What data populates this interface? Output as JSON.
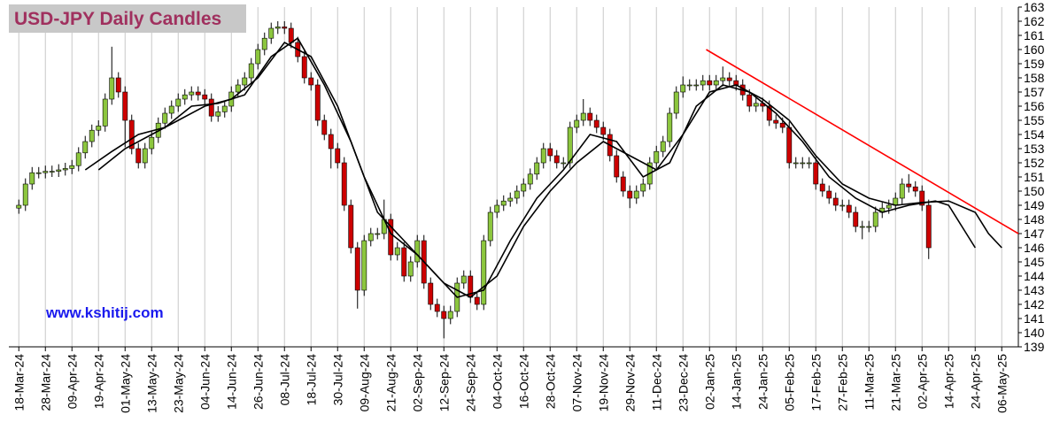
{
  "chart_data": {
    "type": "candlestick",
    "title": "USD-JPY Daily Candles",
    "annotation": "www.kshitij.com",
    "up_color": "#8cc63e",
    "down_color": "#cc0000",
    "ylim": [
      139,
      163
    ],
    "yticks": [
      139,
      140,
      141,
      142,
      143,
      144,
      145,
      146,
      147,
      148,
      149,
      150,
      151,
      152,
      153,
      154,
      155,
      156,
      157,
      158,
      159,
      160,
      161,
      162,
      163
    ],
    "xlim": [
      -3,
      301
    ],
    "grid": true,
    "xticks": [
      {
        "value": 0,
        "label": "18-Mar-24"
      },
      {
        "value": 8,
        "label": "28-Mar-24"
      },
      {
        "value": 16,
        "label": "09-Apr-24"
      },
      {
        "value": 24,
        "label": "19-Apr-24"
      },
      {
        "value": 32,
        "label": "01-May-24"
      },
      {
        "value": 40,
        "label": "13-May-24"
      },
      {
        "value": 48,
        "label": "23-May-24"
      },
      {
        "value": 56,
        "label": "04-Jun-24"
      },
      {
        "value": 64,
        "label": "14-Jun-24"
      },
      {
        "value": 72,
        "label": "26-Jun-24"
      },
      {
        "value": 80,
        "label": "08-Jul-24"
      },
      {
        "value": 88,
        "label": "18-Jul-24"
      },
      {
        "value": 96,
        "label": "30-Jul-24"
      },
      {
        "value": 104,
        "label": "09-Aug-24"
      },
      {
        "value": 112,
        "label": "21-Aug-24"
      },
      {
        "value": 120,
        "label": "02-Sep-24"
      },
      {
        "value": 128,
        "label": "12-Sep-24"
      },
      {
        "value": 136,
        "label": "24-Sep-24"
      },
      {
        "value": 144,
        "label": "04-Oct-24"
      },
      {
        "value": 152,
        "label": "16-Oct-24"
      },
      {
        "value": 160,
        "label": "28-Oct-24"
      },
      {
        "value": 168,
        "label": "07-Nov-24"
      },
      {
        "value": 176,
        "label": "19-Nov-24"
      },
      {
        "value": 184,
        "label": "29-Nov-24"
      },
      {
        "value": 192,
        "label": "11-Dec-24"
      },
      {
        "value": 200,
        "label": "23-Dec-24"
      },
      {
        "value": 208,
        "label": "02-Jan-25"
      },
      {
        "value": 216,
        "label": "14-Jan-25"
      },
      {
        "value": 224,
        "label": "24-Jan-25"
      },
      {
        "value": 232,
        "label": "05-Feb-25"
      },
      {
        "value": 240,
        "label": "17-Feb-25"
      },
      {
        "value": 248,
        "label": "27-Feb-25"
      },
      {
        "value": 256,
        "label": "11-Mar-25"
      },
      {
        "value": 264,
        "label": "21-Mar-25"
      },
      {
        "value": 272,
        "label": "02-Apr-25"
      },
      {
        "value": 280,
        "label": "14-Apr-25"
      },
      {
        "value": 288,
        "label": "24-Apr-25"
      },
      {
        "value": 296,
        "label": "06-May-25"
      }
    ],
    "x": [
      0,
      2,
      4,
      6,
      8,
      10,
      12,
      14,
      16,
      18,
      20,
      22,
      24,
      26,
      28,
      30,
      32,
      34,
      36,
      38,
      40,
      42,
      44,
      46,
      48,
      50,
      52,
      54,
      56,
      58,
      60,
      62,
      64,
      66,
      68,
      70,
      72,
      74,
      76,
      78,
      80,
      82,
      84,
      86,
      88,
      90,
      92,
      94,
      96,
      98,
      100,
      102,
      104,
      106,
      108,
      110,
      112,
      114,
      116,
      118,
      120,
      122,
      124,
      126,
      128,
      130,
      132,
      134,
      136,
      138,
      140,
      142,
      144,
      146,
      148,
      150,
      152,
      154,
      156,
      158,
      160,
      162,
      164,
      166,
      168,
      170,
      172,
      174,
      176,
      178,
      180,
      182,
      184,
      186,
      188,
      190,
      192,
      194,
      196,
      198,
      200,
      202,
      204,
      206,
      208,
      210,
      212,
      214,
      216,
      218,
      220,
      222,
      224,
      226,
      228,
      230,
      232,
      234,
      236,
      238,
      240,
      242,
      244,
      246,
      248,
      250,
      252,
      254,
      256,
      258,
      260,
      262,
      264,
      266,
      268,
      270,
      272,
      274
    ],
    "open": [
      148.8,
      149.0,
      150.5,
      151.3,
      151.3,
      151.4,
      151.4,
      151.5,
      151.6,
      151.8,
      152.7,
      153.5,
      154.3,
      154.6,
      156.5,
      158.0,
      157.0,
      155.0,
      153.0,
      152.0,
      153.0,
      153.8,
      154.8,
      155.5,
      156.0,
      156.5,
      156.8,
      157.0,
      156.8,
      156.5,
      155.3,
      155.6,
      156.0,
      157.0,
      157.5,
      158.0,
      159.0,
      160.0,
      160.8,
      161.5,
      161.6,
      161.5,
      160.5,
      159.5,
      158.0,
      157.5,
      155.0,
      154.0,
      153.0,
      152.0,
      149.0,
      146.0,
      143.0,
      146.5,
      147.0,
      147.0,
      148.0,
      145.5,
      146.0,
      144.0,
      145.0,
      146.5,
      143.5,
      142.0,
      141.5,
      141.0,
      141.5,
      143.5,
      144.0,
      142.5,
      142.0,
      146.5,
      148.5,
      149.0,
      149.3,
      149.5,
      150.0,
      150.5,
      151.2,
      152.0,
      153.0,
      152.5,
      152.0,
      152.0,
      154.5,
      155.0,
      155.5,
      155.0,
      154.5,
      154.0,
      152.5,
      151.0,
      150.0,
      149.5,
      150.0,
      150.5,
      152.0,
      152.8,
      153.5,
      155.5,
      157.0,
      157.5,
      157.5,
      157.5,
      157.8,
      157.5,
      157.8,
      158.0,
      157.8,
      157.5,
      156.8,
      156.0,
      156.2,
      156.0,
      155.0,
      154.8,
      154.5,
      152.0,
      152.0,
      152.0,
      152.0,
      150.5,
      150.0,
      149.5,
      149.0,
      149.0,
      148.5,
      147.5,
      147.5,
      147.5,
      148.5,
      148.8,
      149.0,
      149.5,
      150.5,
      150.3,
      150.0,
      149.0
    ],
    "high": [
      149.4,
      150.9,
      151.7,
      151.7,
      151.8,
      151.8,
      151.9,
      152.0,
      152.2,
      153.1,
      153.9,
      154.7,
      155.0,
      156.9,
      160.2,
      158.4,
      157.4,
      155.4,
      153.4,
      153.4,
      154.2,
      155.2,
      155.9,
      156.4,
      156.9,
      157.2,
      157.4,
      157.4,
      157.2,
      156.9,
      156.0,
      156.4,
      157.4,
      157.9,
      158.4,
      159.4,
      160.4,
      161.2,
      161.9,
      162.0,
      162.0,
      161.9,
      160.9,
      159.9,
      158.4,
      157.9,
      155.4,
      154.4,
      153.4,
      152.4,
      149.4,
      146.4,
      146.9,
      147.4,
      147.4,
      149.4,
      148.4,
      146.4,
      146.4,
      145.4,
      146.9,
      146.9,
      143.9,
      142.4,
      141.9,
      141.9,
      143.9,
      144.4,
      144.4,
      142.9,
      146.9,
      148.9,
      149.4,
      149.7,
      149.9,
      150.4,
      150.9,
      151.6,
      152.4,
      153.4,
      153.4,
      152.9,
      152.4,
      154.9,
      155.4,
      156.5,
      155.9,
      155.4,
      154.9,
      154.4,
      152.9,
      151.4,
      150.4,
      150.4,
      150.9,
      152.4,
      153.2,
      153.9,
      155.9,
      157.4,
      158.1,
      157.9,
      157.9,
      158.2,
      158.2,
      158.2,
      158.8,
      158.4,
      158.2,
      157.9,
      157.2,
      156.6,
      156.6,
      156.4,
      155.4,
      155.2,
      154.9,
      152.4,
      152.4,
      152.4,
      152.4,
      150.9,
      150.4,
      149.9,
      149.4,
      149.4,
      148.9,
      147.9,
      147.9,
      148.9,
      149.2,
      149.4,
      149.9,
      150.9,
      151.2,
      150.7,
      150.4,
      149.4
    ],
    "low": [
      148.4,
      148.6,
      150.1,
      150.9,
      150.9,
      151.0,
      151.0,
      151.1,
      151.2,
      151.4,
      152.3,
      153.1,
      153.9,
      154.2,
      156.1,
      156.6,
      153.1,
      152.6,
      151.6,
      151.6,
      152.6,
      153.4,
      154.4,
      155.1,
      155.6,
      156.1,
      156.4,
      156.4,
      156.1,
      154.9,
      154.9,
      155.2,
      155.6,
      156.6,
      157.1,
      157.6,
      158.6,
      159.6,
      160.4,
      161.1,
      161.1,
      160.1,
      159.1,
      157.6,
      157.1,
      154.6,
      153.6,
      151.6,
      151.6,
      148.6,
      145.6,
      141.7,
      142.6,
      146.1,
      146.6,
      146.6,
      145.1,
      145.1,
      143.6,
      143.6,
      144.6,
      143.1,
      141.6,
      141.1,
      139.6,
      140.6,
      141.1,
      143.1,
      142.1,
      141.6,
      141.6,
      146.1,
      148.1,
      148.6,
      148.9,
      149.1,
      149.6,
      150.1,
      150.8,
      151.6,
      152.1,
      151.6,
      151.6,
      151.6,
      154.1,
      154.6,
      154.6,
      154.1,
      153.6,
      152.1,
      150.6,
      149.6,
      148.8,
      149.1,
      149.6,
      150.1,
      151.6,
      152.4,
      153.1,
      155.1,
      156.6,
      157.1,
      157.1,
      157.1,
      157.1,
      157.1,
      157.4,
      157.4,
      157.1,
      156.4,
      155.6,
      155.6,
      155.6,
      154.6,
      154.4,
      154.1,
      151.6,
      151.6,
      151.6,
      151.6,
      150.1,
      149.6,
      149.1,
      148.6,
      148.6,
      148.1,
      147.1,
      146.6,
      147.1,
      147.1,
      148.1,
      148.4,
      148.6,
      149.1,
      149.9,
      149.6,
      148.6,
      145.2
    ],
    "close": [
      149.0,
      150.5,
      151.3,
      151.3,
      151.4,
      151.4,
      151.5,
      151.6,
      151.8,
      152.7,
      153.5,
      154.3,
      154.6,
      156.5,
      158.0,
      157.0,
      155.0,
      153.0,
      152.0,
      153.0,
      153.8,
      154.8,
      155.5,
      156.0,
      156.5,
      156.8,
      157.0,
      156.8,
      156.5,
      155.3,
      155.6,
      156.0,
      157.0,
      157.5,
      158.0,
      159.0,
      160.0,
      160.8,
      161.5,
      161.6,
      161.5,
      160.5,
      159.5,
      158.0,
      157.5,
      155.0,
      154.0,
      153.0,
      152.0,
      149.0,
      146.0,
      143.0,
      146.5,
      147.0,
      147.0,
      148.0,
      145.5,
      146.0,
      144.0,
      145.0,
      146.5,
      143.5,
      142.0,
      141.5,
      141.0,
      141.5,
      143.5,
      144.0,
      142.5,
      142.0,
      146.5,
      148.5,
      149.0,
      149.3,
      149.5,
      150.0,
      150.5,
      151.2,
      152.0,
      153.0,
      152.5,
      152.0,
      152.0,
      154.5,
      155.0,
      155.5,
      155.0,
      154.5,
      154.0,
      152.5,
      151.0,
      150.0,
      149.5,
      150.0,
      150.5,
      152.0,
      152.8,
      153.5,
      155.5,
      157.0,
      157.5,
      157.5,
      157.5,
      157.8,
      157.5,
      157.8,
      158.0,
      157.8,
      157.5,
      156.8,
      156.0,
      156.2,
      156.0,
      155.0,
      154.8,
      154.5,
      152.0,
      152.0,
      152.0,
      152.0,
      150.5,
      150.0,
      149.5,
      149.0,
      149.0,
      148.5,
      147.5,
      147.5,
      147.5,
      148.5,
      148.8,
      149.0,
      149.5,
      150.5,
      150.3,
      150.0,
      149.0,
      146.0
    ],
    "moving_averages": [
      {
        "color": "#000000",
        "x": [
          20,
          28,
          36,
          44,
          52,
          60,
          68,
          76,
          84,
          92,
          100,
          108,
          116,
          124,
          132,
          140,
          148,
          156,
          164,
          172,
          180,
          188,
          196,
          204,
          212,
          220,
          228,
          236,
          244,
          252,
          260,
          268,
          276,
          280,
          284,
          288
        ],
        "values": [
          151.5,
          152.8,
          154.0,
          154.5,
          156.0,
          156.2,
          156.8,
          159.5,
          160.8,
          157.5,
          153.5,
          148.5,
          146.5,
          144.5,
          142.5,
          143.0,
          146.5,
          149.5,
          151.5,
          154.0,
          153.5,
          151.0,
          152.0,
          156.0,
          157.5,
          157.0,
          155.5,
          153.5,
          151.0,
          149.5,
          148.5,
          149.0,
          149.3,
          149.0,
          147.5,
          146.0
        ]
      },
      {
        "color": "#000000",
        "x": [
          24,
          32,
          40,
          48,
          56,
          64,
          72,
          80,
          88,
          96,
          104,
          112,
          120,
          128,
          136,
          144,
          152,
          160,
          168,
          176,
          184,
          192,
          200,
          208,
          216,
          224,
          232,
          240,
          248,
          256,
          264,
          272,
          280,
          288,
          292,
          296
        ],
        "values": [
          151.5,
          153.0,
          154.0,
          155.0,
          156.0,
          156.5,
          158.0,
          160.5,
          159.5,
          156.0,
          151.0,
          147.0,
          145.5,
          143.5,
          142.5,
          144.0,
          147.5,
          150.0,
          152.0,
          153.5,
          152.5,
          151.5,
          154.0,
          157.0,
          157.5,
          156.5,
          155.0,
          152.5,
          150.5,
          149.5,
          149.0,
          149.2,
          149.3,
          148.5,
          147.0,
          146.0
        ]
      }
    ],
    "trendline": {
      "color": "#ff0000",
      "x": [
        207,
        301
      ],
      "values": [
        160,
        147
      ]
    }
  }
}
